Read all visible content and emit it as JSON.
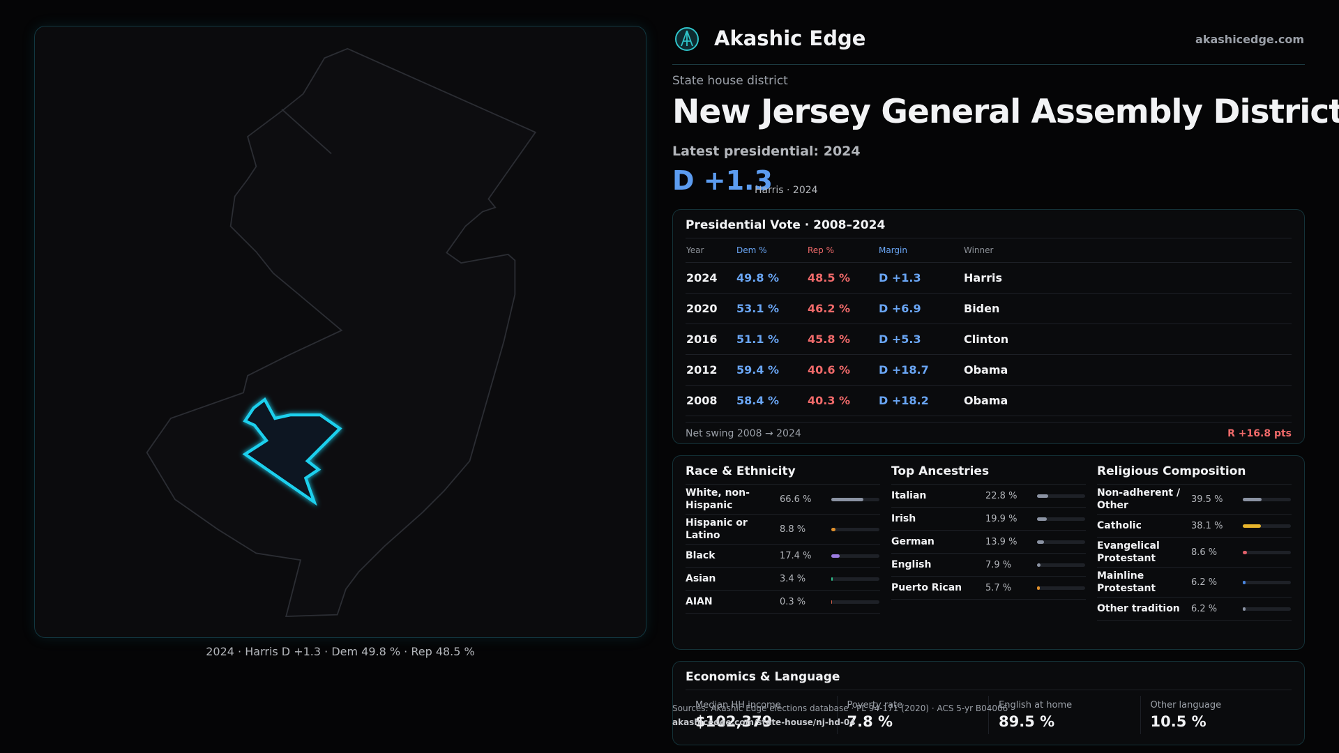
{
  "header": {
    "brand": "Akashic Edge",
    "site": "akashicedge.com"
  },
  "district": {
    "kicker": "State house district",
    "title": "New Jersey General Assembly District",
    "latest": "Latest presidential: 2024",
    "margin": "D +1.3",
    "margin_note": "Harris · 2024"
  },
  "map": {
    "caption": "2024 · Harris D +1.3 · Dem 49.8 % · Rep 48.5 %"
  },
  "vote_table": {
    "title": "Presidential Vote · 2008–2024",
    "columns": [
      "Year",
      "Dem %",
      "Rep %",
      "Margin",
      "Winner"
    ],
    "rows": [
      [
        "2024",
        "49.8 %",
        "48.5 %",
        "D +1.3",
        "Harris"
      ],
      [
        "2020",
        "53.1 %",
        "46.2 %",
        "D +6.9",
        "Biden"
      ],
      [
        "2016",
        "51.1 %",
        "45.8 %",
        "D +5.3",
        "Clinton"
      ],
      [
        "2012",
        "59.4 %",
        "40.6 %",
        "D +18.7",
        "Obama"
      ],
      [
        "2008",
        "58.4 %",
        "40.3 %",
        "D +18.2",
        "Obama"
      ]
    ],
    "swing_label": "Net swing 2008 → 2024",
    "swing_value": "R +16.8 pts"
  },
  "breakdowns": [
    {
      "title": "Race & Ethnicity",
      "items": [
        {
          "label": "White, non-Hispanic",
          "value": 66.6,
          "value_label": "66.6 %",
          "color": "#8b93a3"
        },
        {
          "label": "Hispanic or Latino",
          "value": 8.8,
          "value_label": "8.8 %",
          "color": "#e0902c"
        },
        {
          "label": "Black",
          "value": 17.4,
          "value_label": "17.4 %",
          "color": "#9b7be0"
        },
        {
          "label": "Asian",
          "value": 3.4,
          "value_label": "3.4 %",
          "color": "#2fbf8a"
        },
        {
          "label": "AIAN",
          "value": 0.3,
          "value_label": "0.3 %",
          "color": "#d0604a"
        }
      ]
    },
    {
      "title": "Top Ancestries",
      "items": [
        {
          "label": "Italian",
          "value": 22.8,
          "value_label": "22.8 %",
          "color": "#8b93a3"
        },
        {
          "label": "Irish",
          "value": 19.9,
          "value_label": "19.9 %",
          "color": "#8b93a3"
        },
        {
          "label": "German",
          "value": 13.9,
          "value_label": "13.9 %",
          "color": "#8b93a3"
        },
        {
          "label": "English",
          "value": 7.9,
          "value_label": "7.9 %",
          "color": "#8b93a3"
        },
        {
          "label": "Puerto Rican",
          "value": 5.7,
          "value_label": "5.7 %",
          "color": "#e0902c"
        }
      ]
    },
    {
      "title": "Religious Composition",
      "items": [
        {
          "label": "Non-adherent / Other",
          "value": 39.5,
          "value_label": "39.5 %",
          "color": "#8b93a3"
        },
        {
          "label": "Catholic",
          "value": 38.1,
          "value_label": "38.1 %",
          "color": "#e8b52c"
        },
        {
          "label": "Evangelical Protestant",
          "value": 8.6,
          "value_label": "8.6 %",
          "color": "#e0606a"
        },
        {
          "label": "Mainline Protestant",
          "value": 6.2,
          "value_label": "6.2 %",
          "color": "#4a86e0"
        },
        {
          "label": "Other tradition",
          "value": 6.2,
          "value_label": "6.2 %",
          "color": "#8b93a3"
        }
      ]
    }
  ],
  "economics": {
    "title": "Economics & Language",
    "items": [
      {
        "label": "Median HH income",
        "value": "$102,379"
      },
      {
        "label": "Poverty rate",
        "value": "7.8 %"
      },
      {
        "label": "English at home",
        "value": "89.5 %"
      },
      {
        "label": "Other language",
        "value": "10.5 %"
      }
    ]
  },
  "sources": {
    "line1": "Sources: Akashic Edge elections database · PL 94-171 (2020) · ACS 5-yr B04006",
    "line2": "akashicedge.com/state-house/nj-hd-04"
  }
}
